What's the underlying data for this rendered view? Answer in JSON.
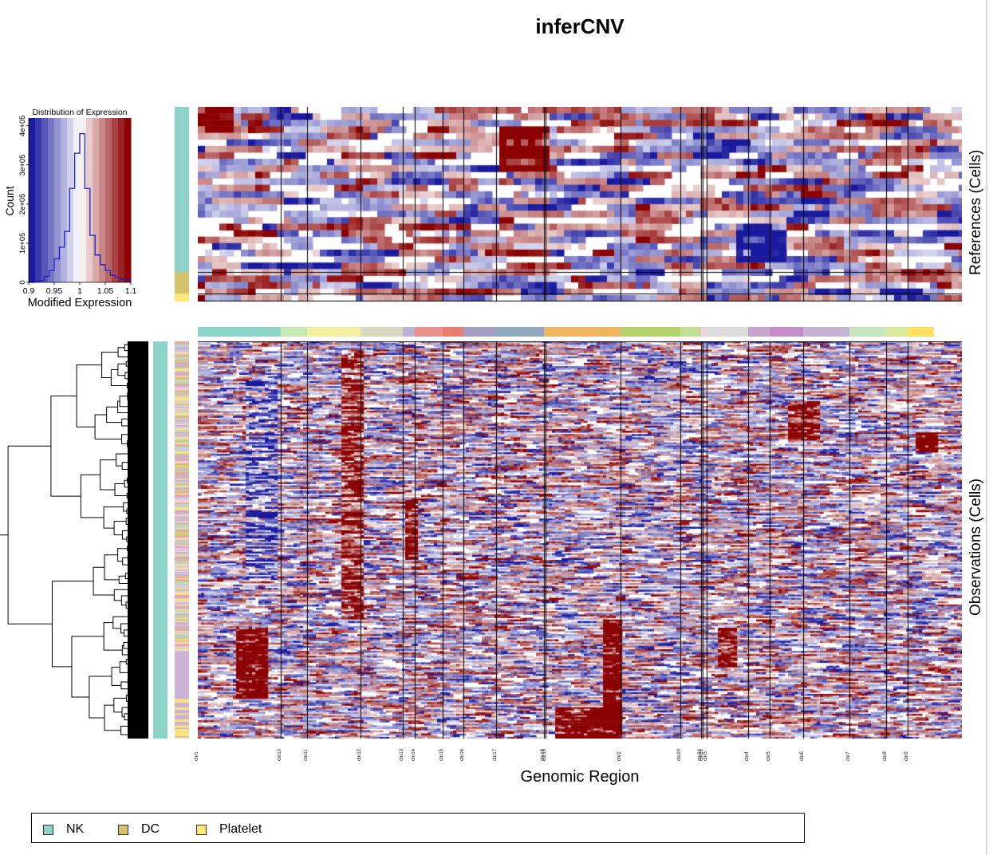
{
  "title": "inferCNV",
  "x_axis_label": "Genomic Region",
  "references_label": "References (Cells)",
  "observations_label": "Observations (Cells)",
  "colors": {
    "low": "#1a1a9e",
    "mid": "#ffffff",
    "high": "#8b0000",
    "NK": "#8dd3c7",
    "DC": "#d6c26a",
    "Platelet": "#ffe878"
  },
  "color_key": {
    "title": "Distribution of Expression",
    "xlabel": "Modified Expression",
    "ylabel": "Count",
    "x_ticks": [
      "0.9",
      "0.95",
      "1",
      "1.05",
      "1.1"
    ],
    "y_ticks": [
      "0",
      "1e+05",
      "2e+05",
      "3e+05",
      "4e+05"
    ]
  },
  "legend": [
    {
      "label": "NK",
      "color": "#8dd3c7"
    },
    {
      "label": "DC",
      "color": "#d6c26a"
    },
    {
      "label": "Platelet",
      "color": "#ffe878"
    }
  ],
  "chart_data": [
    {
      "type": "heatmap",
      "title": "inferCNV",
      "xlabel": "Genomic Region",
      "chromosomes": [
        {
          "name": "chr1",
          "width": 104,
          "color": "#8dd3c7"
        },
        {
          "name": "chr10",
          "width": 33,
          "color": "#c7e9b4"
        },
        {
          "name": "chr11",
          "width": 67,
          "color": "#f2f0a0"
        },
        {
          "name": "chr12",
          "width": 53,
          "color": "#d8d8c0"
        },
        {
          "name": "chr13",
          "width": 15,
          "color": "#b8b0d6"
        },
        {
          "name": "chr14",
          "width": 35,
          "color": "#e8918a"
        },
        {
          "name": "chr15",
          "width": 26,
          "color": "#e87e72"
        },
        {
          "name": "chr16",
          "width": 41,
          "color": "#a79ec4"
        },
        {
          "name": "chr17",
          "width": 60,
          "color": "#93a9c0"
        },
        {
          "name": "chr18",
          "width": 2,
          "color": "#e0b07a"
        },
        {
          "name": "chr19",
          "width": 94,
          "color": "#f0b462"
        },
        {
          "name": "chr2",
          "width": 75,
          "color": "#b6d26a"
        },
        {
          "name": "chr20",
          "width": 26,
          "color": "#c4df94"
        },
        {
          "name": "chr21",
          "width": 2,
          "color": "#f4d6e4"
        },
        {
          "name": "chr22",
          "width": 5,
          "color": "#f4cfe2"
        },
        {
          "name": "chr3",
          "width": 52,
          "color": "#dddddd"
        },
        {
          "name": "chr4",
          "width": 27,
          "color": "#c9a4cc"
        },
        {
          "name": "chr5",
          "width": 42,
          "color": "#c48cc8"
        },
        {
          "name": "chr6",
          "width": 58,
          "color": "#c7b3d4"
        },
        {
          "name": "chr7",
          "width": 46,
          "color": "#c7e6c0"
        },
        {
          "name": "chr8",
          "width": 27,
          "color": "#d9ea9e"
        },
        {
          "name": "chr9",
          "width": 33,
          "color": "#ffe060"
        }
      ],
      "row_groups": [
        {
          "name": "References (Cells)",
          "groups": [
            {
              "label": "NK",
              "color": "#8dd3c7",
              "fraction": 0.85
            },
            {
              "label": "DC",
              "color": "#d6c26a",
              "fraction": 0.11
            },
            {
              "label": "Platelet",
              "color": "#ffe878",
              "fraction": 0.04
            }
          ]
        },
        {
          "name": "Observations (Cells)",
          "groups": [
            {
              "label": "NK",
              "color": "#8dd3c7",
              "fraction": 1.0
            }
          ]
        }
      ],
      "color_scale": {
        "min": 0.9,
        "center": 1.0,
        "max": 1.1
      }
    },
    {
      "type": "line",
      "title": "Distribution of Expression",
      "xlabel": "Modified Expression",
      "ylabel": "Count",
      "xlim": [
        0.9,
        1.1
      ],
      "ylim": [
        0,
        420000
      ],
      "x": [
        0.9,
        0.91,
        0.92,
        0.93,
        0.94,
        0.95,
        0.96,
        0.97,
        0.98,
        0.99,
        1.0,
        1.01,
        1.02,
        1.03,
        1.04,
        1.05,
        1.06,
        1.07,
        1.08,
        1.09,
        1.1
      ],
      "y": [
        0,
        2000,
        5000,
        15000,
        30000,
        60000,
        90000,
        130000,
        240000,
        330000,
        380000,
        240000,
        120000,
        70000,
        45000,
        30000,
        18000,
        12000,
        8000,
        5000,
        3000
      ]
    }
  ]
}
